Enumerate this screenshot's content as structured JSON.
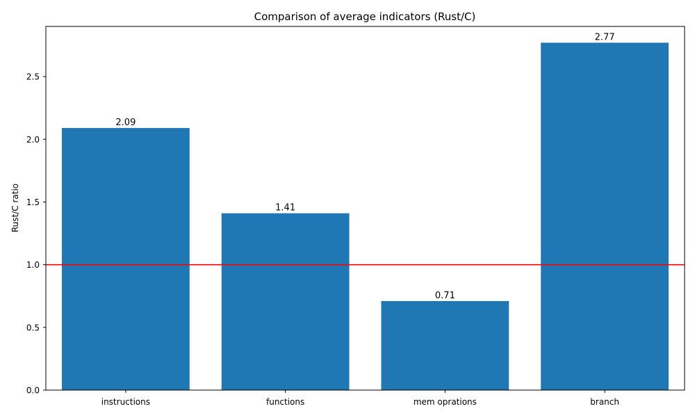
{
  "chart_data": {
    "type": "bar",
    "title": "Comparison of average indicators (Rust/C)",
    "xlabel": "",
    "ylabel": "Rust/C ratio",
    "categories": [
      "instructions",
      "functions",
      "mem oprations",
      "branch"
    ],
    "values": [
      2.09,
      1.41,
      0.71,
      2.77
    ],
    "value_labels": [
      "2.09",
      "1.41",
      "0.71",
      "2.77"
    ],
    "ylim": [
      0,
      2.9
    ],
    "yticks": [
      0.0,
      0.5,
      1.0,
      1.5,
      2.0,
      2.5
    ],
    "ytick_labels": [
      "0.0",
      "0.5",
      "1.0",
      "1.5",
      "2.0",
      "2.5"
    ],
    "reference_line": {
      "y": 1.0,
      "color": "#ff0000"
    },
    "bar_color": "#1f77b4",
    "grid": false,
    "legend": "none"
  }
}
